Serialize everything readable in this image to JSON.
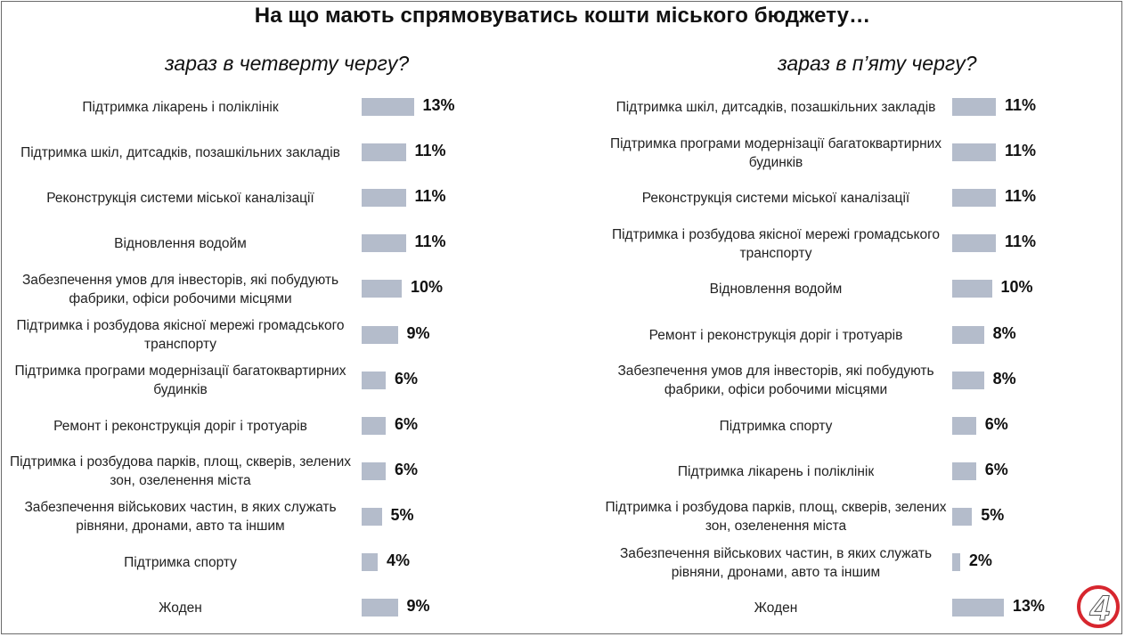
{
  "title": "На що мають спрямовуватись кошти міського бюджету…",
  "logo_text": "4",
  "chart_data": [
    {
      "type": "bar",
      "orientation": "horizontal",
      "title": "зараз в четверту чергу?",
      "unit": "%",
      "categories": [
        "Підтримка лікарень і поліклінік",
        "Підтримка шкіл, дитсадків, позашкільних закладів",
        "Реконструкція системи міської каналізації",
        "Відновлення водойм",
        "Забезпечення умов для інвесторів, які побудують фабрики, офіси робочими місцями",
        "Підтримка і розбудова якісної мережі громадського транспорту",
        "Підтримка програми модернізації багатоквартирних будинків",
        "Ремонт і реконструкція доріг і тротуарів",
        "Підтримка і розбудова парків, площ, скверів, зелених зон, озеленення міста",
        "Забезпечення військових частин, в яких служать рівняни, дронами, авто та іншим",
        "Підтримка спорту",
        "Жоден"
      ],
      "values": [
        13,
        11,
        11,
        11,
        10,
        9,
        6,
        6,
        6,
        5,
        4,
        9
      ],
      "labels": [
        "13%",
        "11%",
        "11%",
        "11%",
        "10%",
        "9%",
        "6%",
        "6%",
        "6%",
        "5%",
        "4%",
        "9%"
      ],
      "xlim": [
        0,
        13
      ],
      "bar_color": "#b4bccb"
    },
    {
      "type": "bar",
      "orientation": "horizontal",
      "title": "зараз в п’яту чергу?",
      "unit": "%",
      "categories": [
        "Підтримка шкіл, дитсадків, позашкільних закладів",
        "Підтримка програми модернізації багатоквартирних будинків",
        "Реконструкція системи міської каналізації",
        "Підтримка і розбудова якісної мережі громадського транспорту",
        "Відновлення водойм",
        "Ремонт і реконструкція доріг і тротуарів",
        "Забезпечення умов для інвесторів, які побудують фабрики, офіси робочими місцями",
        "Підтримка спорту",
        "Підтримка лікарень і поліклінік",
        "Підтримка і розбудова парків, площ, скверів, зелених зон, озеленення міста",
        "Забезпечення військових частин, в яких служать рівняни, дронами, авто та іншим",
        "Жоден"
      ],
      "values": [
        11,
        11,
        11,
        11,
        10,
        8,
        8,
        6,
        6,
        5,
        2,
        13
      ],
      "labels": [
        "11%",
        "11%",
        "11%",
        "11%",
        "10%",
        "8%",
        "8%",
        "6%",
        "6%",
        "5%",
        "2%",
        "13%"
      ],
      "xlim": [
        0,
        13
      ],
      "bar_color": "#b4bccb"
    }
  ]
}
